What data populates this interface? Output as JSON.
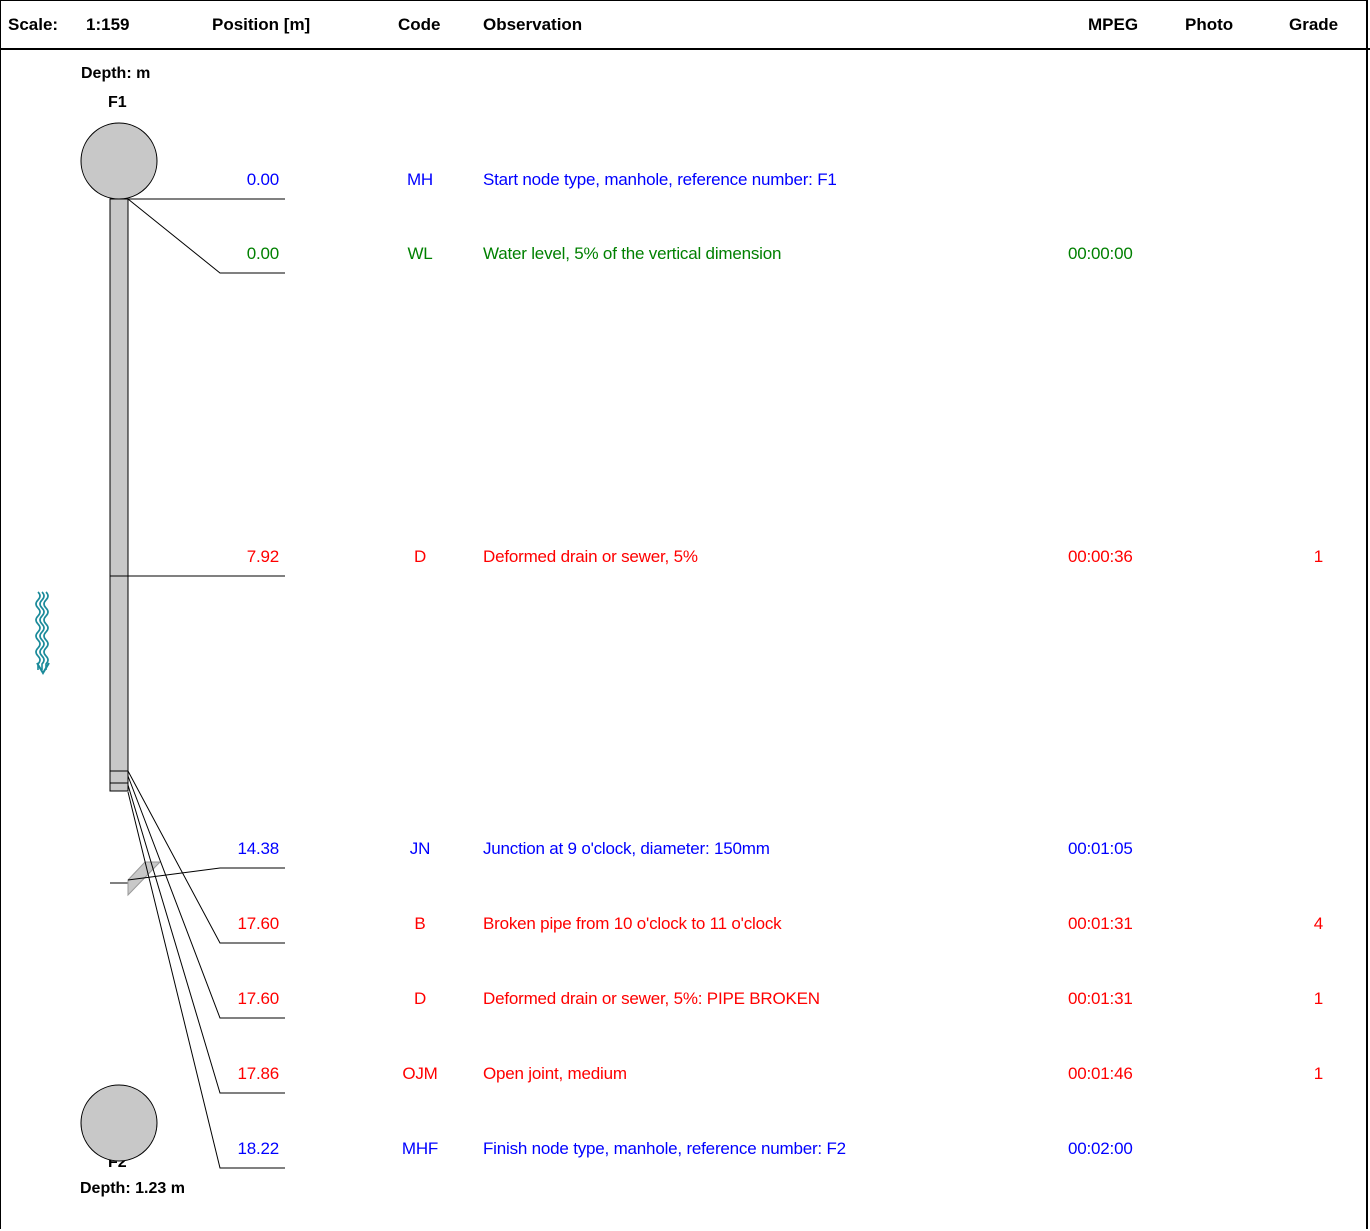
{
  "header": {
    "scale_label": "Scale:",
    "scale_value": "1:159",
    "position": "Position [m]",
    "code": "Code",
    "observation": "Observation",
    "mpeg": "MPEG",
    "photo": "Photo",
    "grade": "Grade"
  },
  "start_node": {
    "depth_label": "Depth: m",
    "name": "F1"
  },
  "finish_node": {
    "depth_label": "Depth: 1.23 m",
    "name": "F2"
  },
  "colors": {
    "blue": "#0000ff",
    "green": "#008000",
    "red": "#ff0000",
    "pipe": "#c8c8c8",
    "flow_arrow": "#1a8a9a"
  },
  "flow_icon": "flow-direction-arrow-icon",
  "rows": [
    {
      "position": "0.00",
      "code": "MH",
      "observation": "Start node type, manhole, reference number: F1",
      "mpeg": "",
      "photo": "",
      "grade": "",
      "color": "#0000ff"
    },
    {
      "position": "0.00",
      "code": "WL",
      "observation": "Water level, 5% of the vertical dimension",
      "mpeg": "00:00:00",
      "photo": "",
      "grade": "",
      "color": "#008000"
    },
    {
      "position": "7.92",
      "code": "D",
      "observation": "Deformed drain or sewer, 5%",
      "mpeg": "00:00:36",
      "photo": "",
      "grade": "1",
      "color": "#ff0000"
    },
    {
      "position": "14.38",
      "code": "JN",
      "observation": "Junction at 9 o'clock, diameter: 150mm",
      "mpeg": "00:01:05",
      "photo": "",
      "grade": "",
      "color": "#0000ff"
    },
    {
      "position": "17.60",
      "code": "B",
      "observation": "Broken pipe from 10 o'clock to 11 o'clock",
      "mpeg": "00:01:31",
      "photo": "",
      "grade": "4",
      "color": "#ff0000"
    },
    {
      "position": "17.60",
      "code": "D",
      "observation": "Deformed drain or sewer, 5%: PIPE BROKEN",
      "mpeg": "00:01:31",
      "photo": "",
      "grade": "1",
      "color": "#ff0000"
    },
    {
      "position": "17.86",
      "code": "OJM",
      "observation": "Open joint, medium",
      "mpeg": "00:01:46",
      "photo": "",
      "grade": "1",
      "color": "#ff0000"
    },
    {
      "position": "18.22",
      "code": "MHF",
      "observation": "Finish node type, manhole, reference number: F2",
      "mpeg": "00:02:00",
      "photo": "",
      "grade": "",
      "color": "#0000ff"
    }
  ]
}
